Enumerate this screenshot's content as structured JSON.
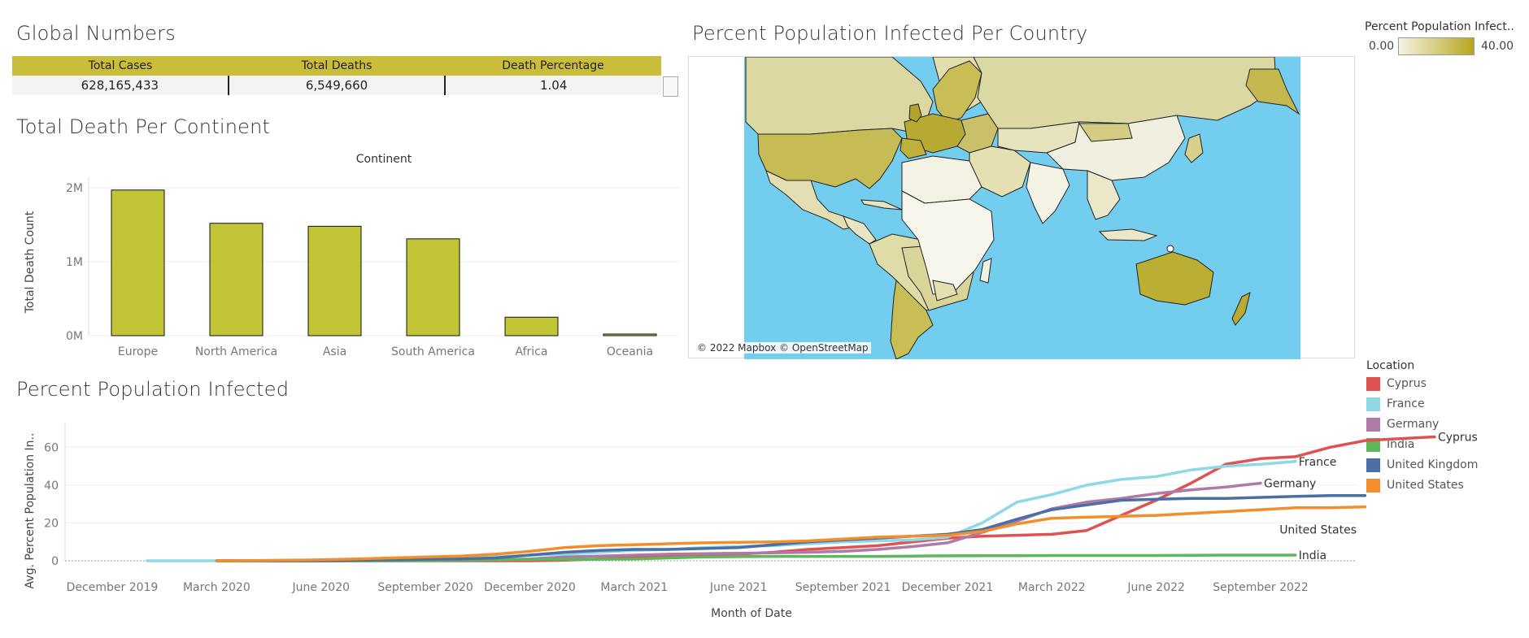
{
  "titles": {
    "global": "Global Numbers",
    "continent": "Total Death Per Continent",
    "map": "Percent Population Infected Per Country",
    "infected": "Percent Population Infected"
  },
  "global_numbers": {
    "headers": [
      "Total Cases",
      "Total Deaths",
      "Death Percentage"
    ],
    "values": [
      "628,165,433",
      "6,549,660",
      "1.04"
    ],
    "header_color": "#c9bd3a"
  },
  "map": {
    "attribution": "© 2022 Mapbox © OpenStreetMap",
    "legend_title": "Percent Population Infect..",
    "legend_min": "0.00",
    "legend_max": "40.00",
    "ocean_color": "#72cdee",
    "low_color": "#f5f3e4",
    "high_color": "#b7a71c"
  },
  "location_legend": {
    "title": "Location",
    "items": [
      {
        "name": "Cyprus",
        "color": "#e05252"
      },
      {
        "name": "France",
        "color": "#8fd8e6"
      },
      {
        "name": "Germany",
        "color": "#b07aa8"
      },
      {
        "name": "India",
        "color": "#5cb85c"
      },
      {
        "name": "United Kingdom",
        "color": "#4a6fa5"
      },
      {
        "name": "United States",
        "color": "#f28e2b"
      }
    ]
  },
  "chart_data": [
    {
      "type": "bar",
      "title": "Total Death Per Continent",
      "column_header": "Continent",
      "ylabel": "Total Death Count",
      "categories": [
        "Europe",
        "North America",
        "Asia",
        "South America",
        "Africa",
        "Oceania"
      ],
      "values": [
        1970000,
        1520000,
        1480000,
        1310000,
        250000,
        22000
      ],
      "ylim": [
        0,
        2100000
      ],
      "yticks": [
        0,
        1000000,
        2000000
      ],
      "ytick_labels": [
        "0M",
        "1M",
        "2M"
      ],
      "bar_color": "#c2c636",
      "grid": true
    },
    {
      "type": "line",
      "title": "Percent Population Infected",
      "xlabel": "Month of Date",
      "ylabel": "Avg. Percent Population In..",
      "x_tick_labels": [
        "December 2019",
        "March 2020",
        "June 2020",
        "September 2020",
        "December 2020",
        "March 2021",
        "June 2021",
        "September 2021",
        "December 2021",
        "March 2022",
        "June 2022",
        "September 2022"
      ],
      "x_tick_months": [
        0,
        3,
        6,
        9,
        12,
        15,
        18,
        21,
        24,
        27,
        30,
        33
      ],
      "ylim": [
        0,
        70
      ],
      "yticks": [
        0,
        20,
        40,
        60
      ],
      "grid": true,
      "series": [
        {
          "name": "Cyprus",
          "color": "#e05252",
          "start": 3,
          "values": [
            0,
            0,
            0,
            0,
            0,
            0,
            0,
            0,
            0,
            0,
            0.3,
            1,
            2,
            2.5,
            3,
            3.5,
            4.5,
            6,
            7,
            8,
            10,
            12,
            13,
            13.5,
            14,
            16,
            24,
            32,
            41,
            51,
            54,
            55,
            60,
            63.5,
            64.5,
            65.5
          ]
        },
        {
          "name": "France",
          "color": "#8fd8e6",
          "start": 1,
          "values": [
            0,
            0,
            0,
            0,
            0.1,
            0.3,
            0.5,
            0.8,
            1,
            1.3,
            2,
            3,
            3.5,
            4.5,
            5.5,
            6,
            7,
            7.5,
            8,
            9,
            10,
            10.5,
            11,
            12.5,
            20,
            31,
            35,
            40,
            43,
            44.5,
            48,
            50,
            51,
            52.5
          ]
        },
        {
          "name": "Germany",
          "color": "#b07aa8",
          "start": 3,
          "values": [
            0,
            0,
            0,
            0,
            0,
            0.2,
            0.3,
            0.4,
            0.5,
            1,
            2,
            2.5,
            3,
            3.5,
            3.8,
            4,
            4.2,
            4.5,
            5,
            6,
            7.5,
            9.5,
            15,
            21,
            27.5,
            31,
            33,
            35.5,
            37.5,
            39,
            41
          ]
        },
        {
          "name": "India",
          "color": "#5cb85c",
          "start": 3,
          "values": [
            0,
            0,
            0,
            0,
            0,
            0,
            0,
            0.3,
            0.5,
            0.7,
            0.8,
            0.8,
            1,
            1.5,
            2,
            2.2,
            2.3,
            2.3,
            2.3,
            2.3,
            2.5,
            2.6,
            2.7,
            2.7,
            2.8,
            2.8,
            2.8,
            2.8,
            2.9,
            3,
            3,
            3
          ]
        },
        {
          "name": "United Kingdom",
          "color": "#4a6fa5",
          "start": 3,
          "values": [
            0,
            0,
            0,
            0,
            0.3,
            0.5,
            0.8,
            1,
            1.5,
            3,
            4.5,
            5.5,
            6,
            6,
            6.5,
            7,
            8.5,
            10,
            11,
            12,
            13,
            14,
            16.5,
            22,
            27,
            29.5,
            32,
            32.5,
            33,
            33,
            33.5,
            34,
            34.5,
            34.5
          ]
        },
        {
          "name": "United States",
          "color": "#f28e2b",
          "start": 3,
          "values": [
            0,
            0.1,
            0.3,
            0.5,
            1,
            1.5,
            2,
            2.5,
            3.5,
            5,
            7,
            8,
            8.5,
            9,
            9.5,
            9.8,
            10,
            10.5,
            11.5,
            12.5,
            13,
            13.5,
            15.5,
            19.5,
            22.5,
            23,
            23.5,
            24,
            25,
            26,
            27,
            28,
            28,
            28.5
          ]
        }
      ],
      "end_labels": [
        "Cyprus",
        "France",
        "Germany",
        "United States",
        "India"
      ]
    }
  ]
}
